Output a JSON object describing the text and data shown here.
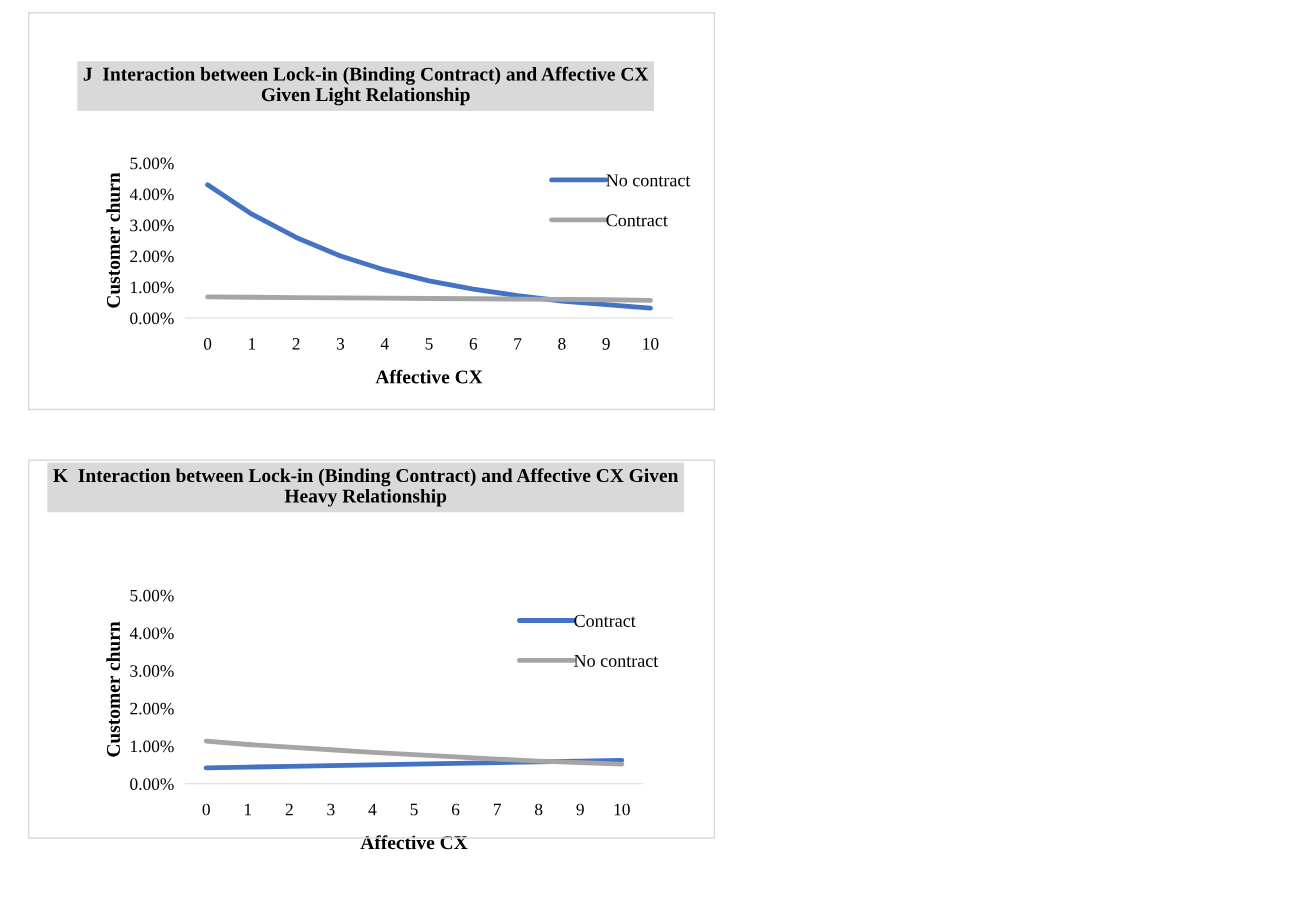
{
  "chart_data": [
    {
      "type": "line",
      "title": "J  Interaction between Lock-in (Binding Contract) and Affective CX Given Light Relationship",
      "xlabel": "Affective CX",
      "ylabel": "Customer churn",
      "categories": [
        "0",
        "1",
        "2",
        "3",
        "4",
        "5",
        "6",
        "7",
        "8",
        "9",
        "10"
      ],
      "series": [
        {
          "name": "No contract",
          "color": "#4472c4",
          "values": [
            4.3,
            3.35,
            2.6,
            2.0,
            1.55,
            1.2,
            0.93,
            0.72,
            0.55,
            0.43,
            0.32
          ]
        },
        {
          "name": "Contract",
          "color": "#a5a5a5",
          "values": [
            0.68,
            0.67,
            0.66,
            0.65,
            0.64,
            0.63,
            0.62,
            0.61,
            0.6,
            0.59,
            0.57
          ]
        }
      ],
      "ylim": [
        0,
        5
      ],
      "yticks": [
        {
          "value": 0,
          "label": "0.00%"
        },
        {
          "value": 1,
          "label": "1.00%"
        },
        {
          "value": 2,
          "label": "2.00%"
        },
        {
          "value": 3,
          "label": "3.00%"
        },
        {
          "value": 4,
          "label": "4.00%"
        },
        {
          "value": 5,
          "label": "5.00%"
        }
      ],
      "grid": false,
      "legend": "right",
      "marker": "none",
      "line_style": "solid"
    },
    {
      "type": "line",
      "title": "K  Interaction between Lock-in (Binding Contract) and Affective CX Given Heavy Relationship",
      "xlabel": "Affective CX",
      "ylabel": "Customer churn",
      "categories": [
        "0",
        "1",
        "2",
        "3",
        "4",
        "5",
        "6",
        "7",
        "8",
        "9",
        "10"
      ],
      "series": [
        {
          "name": "Contract",
          "color": "#4472c4",
          "values": [
            0.42,
            0.44,
            0.46,
            0.48,
            0.5,
            0.52,
            0.54,
            0.56,
            0.58,
            0.6,
            0.62
          ]
        },
        {
          "name": "No contract",
          "color": "#a5a5a5",
          "values": [
            1.13,
            1.04,
            0.97,
            0.9,
            0.83,
            0.77,
            0.71,
            0.65,
            0.6,
            0.56,
            0.52
          ]
        }
      ],
      "ylim": [
        0,
        5
      ],
      "yticks": [
        {
          "value": 0,
          "label": "0.00%"
        },
        {
          "value": 1,
          "label": "1.00%"
        },
        {
          "value": 2,
          "label": "2.00%"
        },
        {
          "value": 3,
          "label": "3.00%"
        },
        {
          "value": 4,
          "label": "4.00%"
        },
        {
          "value": 5,
          "label": "5.00%"
        }
      ],
      "grid": false,
      "legend": "right",
      "marker": "none",
      "line_style": "solid"
    }
  ]
}
